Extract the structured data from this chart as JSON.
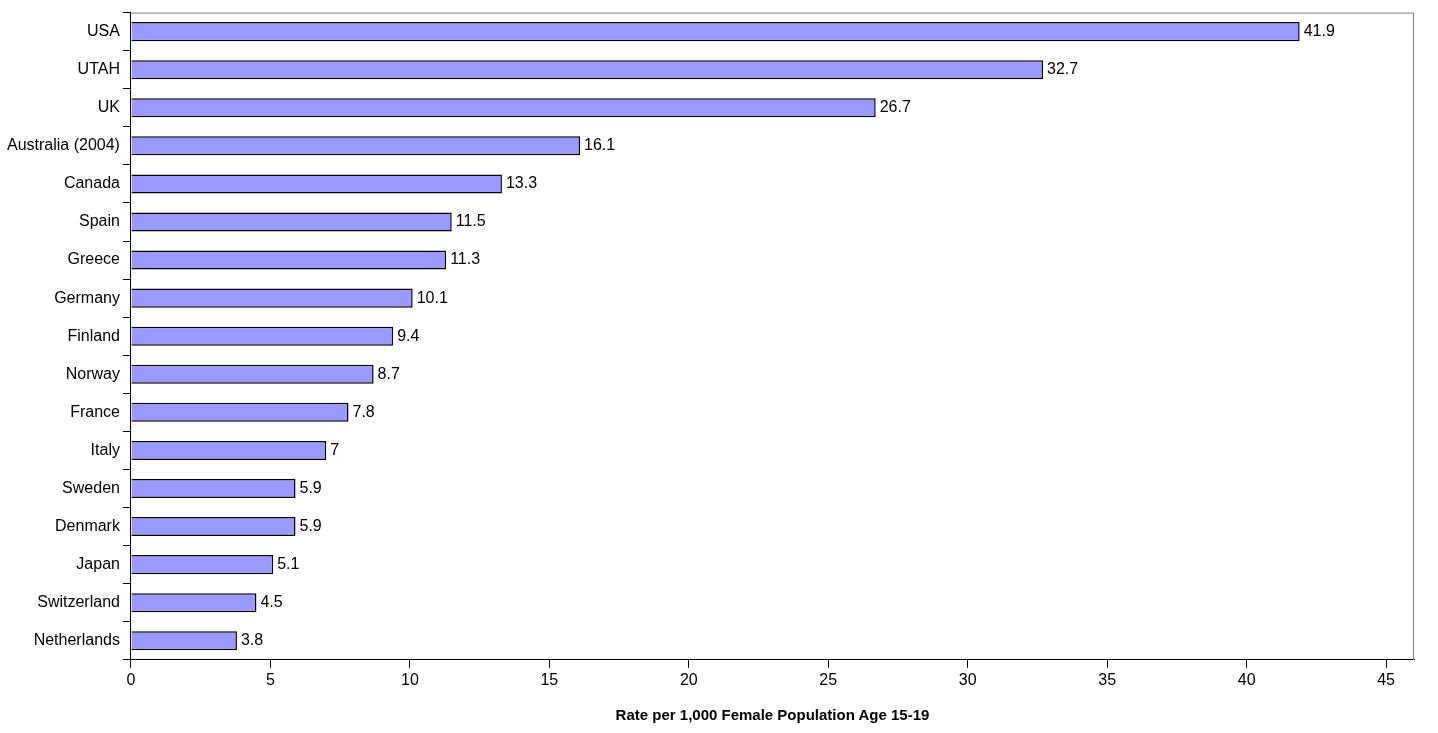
{
  "chart_data": {
    "type": "bar",
    "orientation": "horizontal",
    "xlabel": "Rate per 1,000 Female Population Age 15-19",
    "categories": [
      "USA",
      "UTAH",
      "UK",
      "Australia (2004)",
      "Canada",
      "Spain",
      "Greece",
      "Germany",
      "Finland",
      "Norway",
      "France",
      "Italy",
      "Sweden",
      "Denmark",
      "Japan",
      "Switzerland",
      "Netherlands"
    ],
    "values": [
      41.9,
      32.7,
      26.7,
      16.1,
      13.3,
      11.5,
      11.3,
      10.1,
      9.4,
      8.7,
      7.8,
      7,
      5.9,
      5.9,
      5.1,
      4.5,
      3.8
    ],
    "color": "#9999ff",
    "xlim": [
      0,
      46
    ],
    "xticks": [
      0,
      5,
      10,
      15,
      20,
      25,
      30,
      35,
      40,
      45
    ],
    "grid": false,
    "legend": false,
    "data_labels": true
  }
}
